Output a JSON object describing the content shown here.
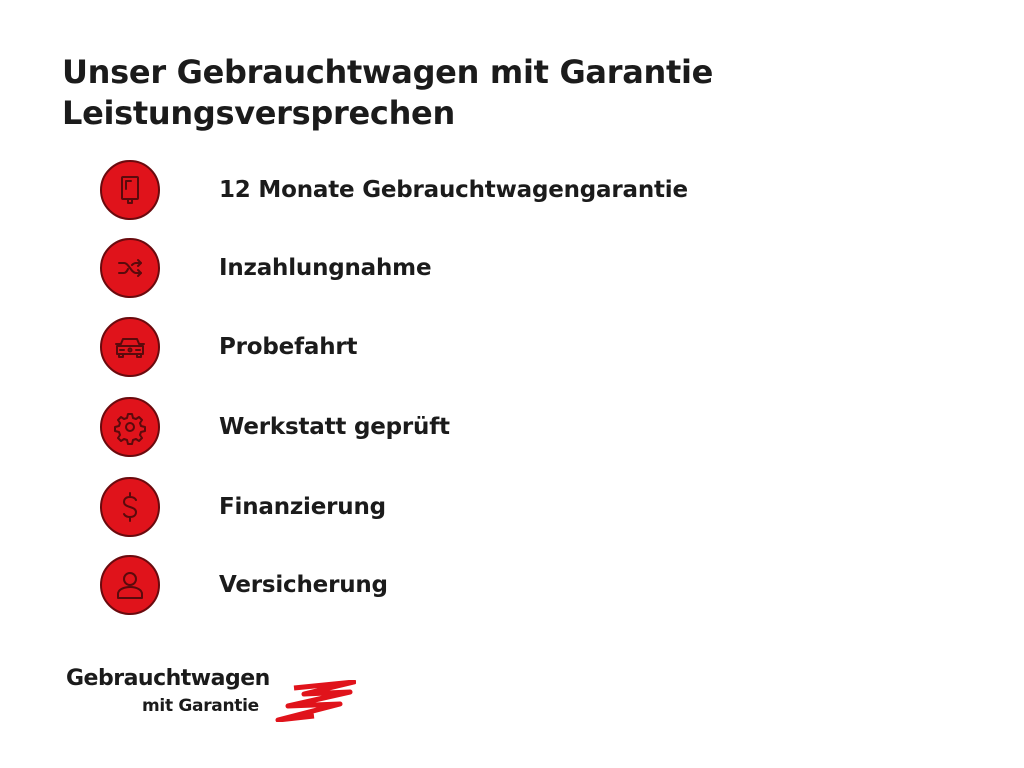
{
  "header": {
    "title_line1": "Unser Gebrauchtwagen mit Garantie",
    "title_line2": "Leistungsversprechen"
  },
  "features": [
    {
      "label": "12 Monate Gebrauchtwagengarantie",
      "icon": "document-icon"
    },
    {
      "label": "Inzahlungnahme",
      "icon": "shuffle-icon"
    },
    {
      "label": "Probefahrt",
      "icon": "car-icon"
    },
    {
      "label": "Werkstatt geprüft",
      "icon": "gear-icon"
    },
    {
      "label": "Finanzierung",
      "icon": "dollar-icon"
    },
    {
      "label": "Versicherung",
      "icon": "person-icon"
    }
  ],
  "logo": {
    "line1": "Gebrauchtwagen",
    "line2": "mit Garantie"
  },
  "colors": {
    "accent": "#e0131b",
    "text": "#1b1b1b"
  }
}
